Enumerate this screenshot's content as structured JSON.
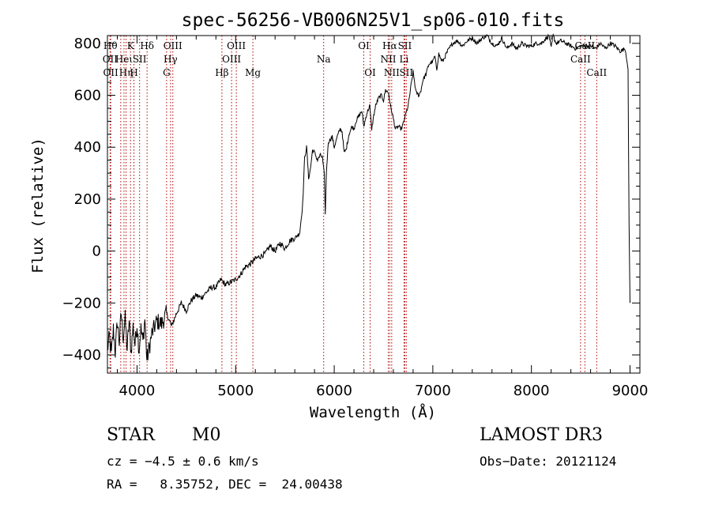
{
  "chart_data": {
    "type": "line",
    "title": "spec-56256-VB006N25V1_sp06-010.fits",
    "xlabel": "Wavelength (Å)",
    "ylabel": "Flux (relative)",
    "xlim": [
      3700,
      9100
    ],
    "ylim": [
      -470,
      830
    ],
    "xticks": [
      {
        "value": 4000,
        "label": "4000"
      },
      {
        "value": 5000,
        "label": "5000"
      },
      {
        "value": 6000,
        "label": "6000"
      },
      {
        "value": 7000,
        "label": "7000"
      },
      {
        "value": 8000,
        "label": "8000"
      },
      {
        "value": 9000,
        "label": "9000"
      }
    ],
    "yticks": [
      {
        "value": -400,
        "label": "−400"
      },
      {
        "value": -200,
        "label": "−200"
      },
      {
        "value": 0,
        "label": "0"
      },
      {
        "value": 200,
        "label": "200"
      },
      {
        "value": 400,
        "label": "400"
      },
      {
        "value": 600,
        "label": "600"
      },
      {
        "value": 800,
        "label": "800"
      }
    ],
    "series": [
      {
        "name": "flux",
        "x": [
          3700,
          3720,
          3740,
          3760,
          3780,
          3800,
          3820,
          3840,
          3860,
          3880,
          3900,
          3920,
          3940,
          3960,
          3980,
          4000,
          4020,
          4040,
          4060,
          4080,
          4100,
          4150,
          4200,
          4250,
          4300,
          4350,
          4400,
          4450,
          4500,
          4550,
          4600,
          4650,
          4700,
          4750,
          4800,
          4850,
          4900,
          4950,
          5000,
          5050,
          5100,
          5150,
          5200,
          5250,
          5300,
          5350,
          5400,
          5450,
          5500,
          5550,
          5600,
          5650,
          5680,
          5700,
          5720,
          5740,
          5760,
          5780,
          5800,
          5830,
          5860,
          5880,
          5900,
          5910,
          5920,
          5940,
          5960,
          5980,
          6000,
          6030,
          6060,
          6080,
          6100,
          6120,
          6150,
          6180,
          6200,
          6220,
          6250,
          6280,
          6300,
          6330,
          6360,
          6380,
          6400,
          6420,
          6450,
          6480,
          6500,
          6520,
          6550,
          6570,
          6600,
          6620,
          6650,
          6680,
          6700,
          6720,
          6750,
          6780,
          6800,
          6830,
          6860,
          6880,
          6900,
          6930,
          6960,
          7000,
          7020,
          7040,
          7060,
          7080,
          7100,
          7150,
          7200,
          7250,
          7300,
          7350,
          7400,
          7450,
          7500,
          7550,
          7600,
          7650,
          7700,
          7750,
          7800,
          7850,
          7900,
          7950,
          8000,
          8050,
          8100,
          8150,
          8180,
          8200,
          8220,
          8250,
          8300,
          8350,
          8400,
          8450,
          8500,
          8550,
          8600,
          8650,
          8700,
          8750,
          8800,
          8850,
          8900,
          8950,
          8980,
          8990,
          9000
        ],
        "y": [
          -380,
          -330,
          -400,
          -300,
          -390,
          -270,
          -350,
          -240,
          -330,
          -260,
          -380,
          -270,
          -390,
          -290,
          -360,
          -280,
          -380,
          -300,
          -350,
          -260,
          -420,
          -320,
          -270,
          -280,
          -240,
          -290,
          -240,
          -200,
          -230,
          -190,
          -170,
          -180,
          -160,
          -140,
          -140,
          -110,
          -130,
          -120,
          -110,
          -90,
          -60,
          -50,
          -30,
          -20,
          -10,
          20,
          0,
          30,
          10,
          40,
          50,
          70,
          180,
          360,
          400,
          280,
          320,
          390,
          380,
          350,
          370,
          360,
          290,
          140,
          300,
          420,
          430,
          440,
          400,
          440,
          470,
          460,
          380,
          390,
          450,
          480,
          470,
          500,
          520,
          540,
          480,
          530,
          560,
          470,
          520,
          560,
          590,
          600,
          580,
          620,
          610,
          560,
          510,
          470,
          480,
          470,
          490,
          520,
          560,
          640,
          690,
          610,
          600,
          620,
          660,
          680,
          720,
          730,
          750,
          700,
          760,
          740,
          730,
          770,
          800,
          810,
          790,
          810,
          820,
          800,
          820,
          830,
          800,
          790,
          820,
          780,
          800,
          780,
          800,
          790,
          790,
          800,
          800,
          820,
          830,
          780,
          830,
          800,
          810,
          800,
          790,
          780,
          790,
          790,
          790,
          780,
          800,
          780,
          800,
          790,
          770,
          780,
          700,
          100,
          -200
        ]
      }
    ],
    "lines": [
      {
        "x": 3730,
        "row": 1,
        "label": "Hθ"
      },
      {
        "x": 3727,
        "row": 2,
        "label": "OII"
      },
      {
        "x": 3733,
        "row": 3,
        "label": "OII"
      },
      {
        "x": 3835,
        "row": 1,
        "label": ""
      },
      {
        "x": 3868,
        "row": 2,
        "label": "Heι"
      },
      {
        "x": 3889,
        "row": 3,
        "label": "Hη"
      },
      {
        "x": 3934,
        "row": 1,
        "label": "K"
      },
      {
        "x": 3969,
        "row": 3,
        "label": "H"
      },
      {
        "x": 4026,
        "row": 2,
        "label": "SII"
      },
      {
        "x": 4102,
        "row": 1,
        "label": "Hδ"
      },
      {
        "x": 4300,
        "row": 3,
        "label": "G"
      },
      {
        "x": 4340,
        "row": 2,
        "label": "Hγ"
      },
      {
        "x": 4363,
        "row": 1,
        "label": "OIII"
      },
      {
        "x": 4861,
        "row": 3,
        "label": "Hβ"
      },
      {
        "x": 4959,
        "row": 2,
        "label": "OIII"
      },
      {
        "x": 5007,
        "row": 1,
        "label": "OIII"
      },
      {
        "x": 5175,
        "row": 3,
        "label": "Mg"
      },
      {
        "x": 5893,
        "row": 2,
        "label": "Na"
      },
      {
        "x": 6300,
        "row": 1,
        "label": "OI"
      },
      {
        "x": 6364,
        "row": 3,
        "label": "OI"
      },
      {
        "x": 6548,
        "row": 2,
        "label": "NII"
      },
      {
        "x": 6563,
        "row": 1,
        "label": "Hα"
      },
      {
        "x": 6583,
        "row": 3,
        "label": "NII"
      },
      {
        "x": 6708,
        "row": 2,
        "label": "Li"
      },
      {
        "x": 6716,
        "row": 1,
        "label": "SII"
      },
      {
        "x": 6731,
        "row": 3,
        "label": "SII"
      },
      {
        "x": 8498,
        "row": 2,
        "label": "CaII"
      },
      {
        "x": 8542,
        "row": 1,
        "label": "CaII"
      },
      {
        "x": 8662,
        "row": 3,
        "label": "CaII"
      }
    ]
  },
  "info": {
    "object_class": "STAR",
    "subclass": "M0",
    "survey": "LAMOST DR3",
    "cz": "cz = −4.5 ± 0.6 km/s",
    "obs_date": "Obs−Date: 20121124",
    "coords": "RA =   8.35752, DEC =  24.00438"
  }
}
